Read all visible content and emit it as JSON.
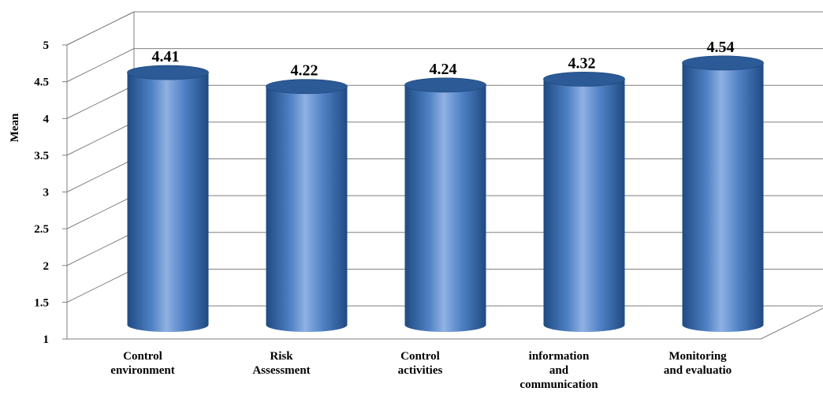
{
  "chart_data": {
    "type": "bar",
    "bar_style": "3d-cylinder",
    "categories": [
      [
        "Control",
        "environment"
      ],
      [
        "Risk",
        "Assessment"
      ],
      [
        "Control",
        "activities"
      ],
      [
        "information",
        "and",
        "communication"
      ],
      [
        "Monitoring",
        "and evaluatio"
      ]
    ],
    "values": [
      4.41,
      4.22,
      4.24,
      4.32,
      4.54
    ],
    "data_labels": [
      "4.41",
      "4.22",
      "4.24",
      "4.32",
      "4.54"
    ],
    "ylabel": "Mean",
    "ylim": [
      1,
      5
    ],
    "yticks": [
      "1",
      "1.5",
      "2",
      "2.5",
      "3",
      "3.5",
      "4",
      "4.5",
      "5"
    ],
    "grid": true,
    "colors": {
      "bar_dark": "#1f4a82",
      "bar_mid": "#4f81c4",
      "bar_light": "#8fb1e3",
      "bar_top": "#2b5a96",
      "grid": "#7f7f7f",
      "axis": "#7f7f7f"
    }
  }
}
